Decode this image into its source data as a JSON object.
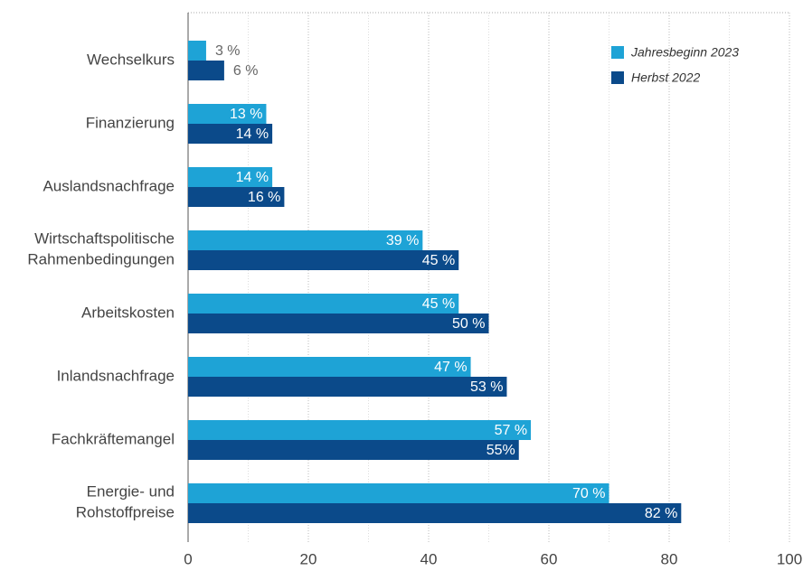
{
  "chart_data": {
    "type": "barh",
    "categories": [
      "Wechselkurs",
      "Finanzierung",
      "Auslandsnachfrage",
      "Wirtschaftspolitische\nRahmenbedingungen",
      "Arbeitskosten",
      "Inlandsnachfrage",
      "Fachkräftemangel",
      "Energie- und\nRohstoffpreise"
    ],
    "series": [
      {
        "name": "Jahresbeginn 2023",
        "color": "#1ea3d6",
        "values": [
          3,
          13,
          14,
          39,
          45,
          47,
          57,
          70
        ],
        "value_labels": [
          "3 %",
          "13 %",
          "14 %",
          "39 %",
          "45 %",
          "47 %",
          "57 %",
          "70 %"
        ]
      },
      {
        "name": "Herbst 2022",
        "color": "#0b4a8a",
        "values": [
          6,
          14,
          16,
          45,
          50,
          53,
          55,
          82
        ],
        "value_labels": [
          "6 %",
          "14 %",
          "16 %",
          "45 %",
          "50 %",
          "53 %",
          "55%",
          "82 %"
        ]
      }
    ],
    "xlim": [
      0,
      100
    ],
    "xticks": [
      0,
      20,
      40,
      60,
      80,
      100
    ],
    "xminorticks": [
      10,
      30,
      50,
      70,
      90
    ],
    "grid": true,
    "legend": "top-right"
  }
}
